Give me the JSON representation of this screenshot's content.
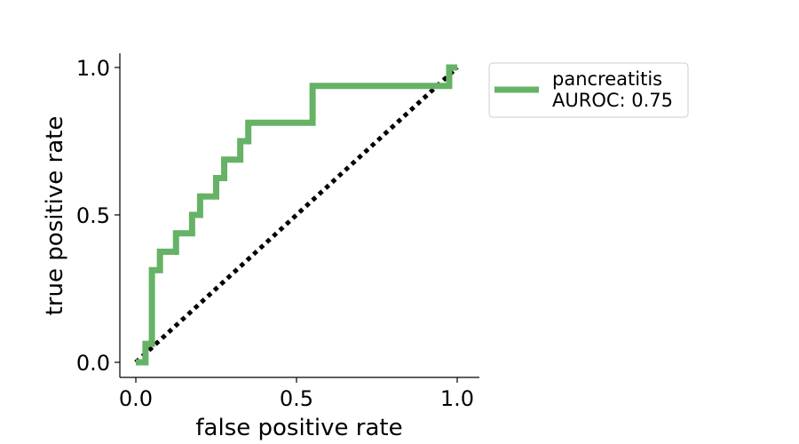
{
  "chart_data": {
    "type": "line",
    "xlabel": "false positive rate",
    "ylabel": "true positive rate",
    "xlim": [
      -0.05,
      1.05
    ],
    "ylim": [
      -0.05,
      1.05
    ],
    "xticks": [
      0.0,
      0.5,
      1.0
    ],
    "yticks": [
      0.0,
      0.5,
      1.0
    ],
    "xtick_labels": [
      "0.0",
      "0.5",
      "1.0"
    ],
    "ytick_labels": [
      "0.0",
      "0.5",
      "1.0"
    ],
    "grid": false,
    "legend_position": "outside-top-right",
    "series": [
      {
        "name": "pancreatitis",
        "legend_label_line1": "pancreatitis",
        "legend_label_line2": "AUROC: 0.75",
        "color": "#66b266",
        "style": "step",
        "x": [
          0.0,
          0.03,
          0.03,
          0.05,
          0.05,
          0.075,
          0.075,
          0.125,
          0.125,
          0.175,
          0.175,
          0.2,
          0.2,
          0.25,
          0.25,
          0.275,
          0.275,
          0.325,
          0.325,
          0.35,
          0.35,
          0.55,
          0.55,
          0.975,
          0.975,
          1.0
        ],
        "y": [
          0.0,
          0.0,
          0.0625,
          0.0625,
          0.3125,
          0.3125,
          0.375,
          0.375,
          0.4375,
          0.4375,
          0.5,
          0.5,
          0.5625,
          0.5625,
          0.625,
          0.625,
          0.6875,
          0.6875,
          0.75,
          0.75,
          0.8125,
          0.8125,
          0.9375,
          0.9375,
          1.0,
          1.0
        ]
      },
      {
        "color": "#000000",
        "style": "dotted",
        "x": [
          0.0,
          1.0
        ],
        "y": [
          0.0,
          1.0
        ]
      }
    ]
  }
}
